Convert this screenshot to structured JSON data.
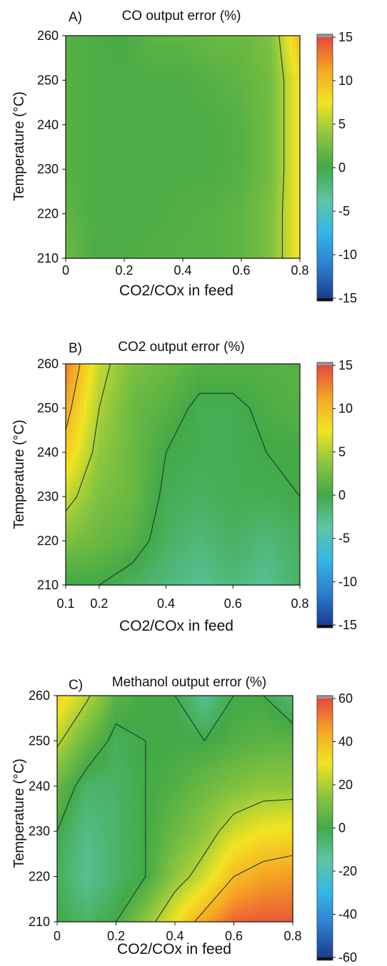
{
  "colors": {
    "stops": [
      "#1a3d8f",
      "#2b7fd0",
      "#33b7e6",
      "#5cc6a8",
      "#43a947",
      "#8cc63e",
      "#f2e422",
      "#f5a623",
      "#e8473c"
    ],
    "contour_line": "#1c3b36",
    "frame": "#111111",
    "cap_top": "#9a9a9a",
    "cap_bottom": "#111111"
  },
  "chart_data": [
    {
      "type": "heatmap",
      "panel_label": "A)",
      "title": "CO output error (%)",
      "xlabel": "CO2/COx in feed",
      "ylabel": "Temperature (°C)",
      "xlim": [
        0,
        0.8
      ],
      "ylim": [
        210,
        260
      ],
      "x_ticks": [
        "0",
        "0.2",
        "0.4",
        "0.6",
        "0.8"
      ],
      "x_tick_values": [
        0,
        0.2,
        0.4,
        0.6,
        0.8
      ],
      "y_ticks": [
        "210",
        "220",
        "230",
        "240",
        "250",
        "260"
      ],
      "y_tick_values": [
        210,
        220,
        230,
        240,
        250,
        260
      ],
      "colorbar": {
        "min": -15,
        "max": 15,
        "ticks": [
          "15",
          "10",
          "5",
          "0",
          "-5",
          "-10",
          "-15"
        ],
        "tick_values": [
          15,
          10,
          5,
          0,
          -5,
          -10,
          -15
        ]
      },
      "x": [
        0,
        0.1,
        0.2,
        0.3,
        0.4,
        0.5,
        0.6,
        0.7,
        0.8
      ],
      "y": [
        210,
        220,
        230,
        240,
        250,
        260
      ],
      "z": [
        [
          2,
          0.5,
          0.5,
          0.8,
          1,
          1,
          1.5,
          3,
          8
        ],
        [
          1.5,
          0.5,
          0.5,
          0.5,
          0.8,
          1,
          1.5,
          3,
          8
        ],
        [
          1,
          0.5,
          0.5,
          0.5,
          0.5,
          0.5,
          1,
          2.5,
          8
        ],
        [
          1,
          0.5,
          0.5,
          0.5,
          0.5,
          0.5,
          1,
          2.5,
          8
        ],
        [
          1,
          0.5,
          0.5,
          0.5,
          0.5,
          1,
          1.5,
          2.5,
          8
        ],
        [
          1,
          0.5,
          0.3,
          1.5,
          1.5,
          2,
          2,
          3,
          10
        ]
      ]
    },
    {
      "type": "heatmap",
      "panel_label": "B)",
      "title": "CO2 output error (%)",
      "xlabel": "CO2/COx in feed",
      "ylabel": "Temperature (°C)",
      "xlim": [
        0.1,
        0.8
      ],
      "ylim": [
        210,
        260
      ],
      "x_ticks": [
        "0.1",
        "0.2",
        "0.4",
        "0.6",
        "0.8"
      ],
      "x_tick_values": [
        0.1,
        0.2,
        0.4,
        0.6,
        0.8
      ],
      "y_ticks": [
        "210",
        "220",
        "230",
        "240",
        "250",
        "260"
      ],
      "y_tick_values": [
        210,
        220,
        230,
        240,
        250,
        260
      ],
      "colorbar": {
        "min": -15,
        "max": 15,
        "ticks": [
          "15",
          "10",
          "5",
          "0",
          "-5",
          "-10",
          "-15"
        ],
        "tick_values": [
          15,
          10,
          5,
          0,
          -5,
          -10,
          -15
        ]
      },
      "x": [
        0.1,
        0.2,
        0.3,
        0.4,
        0.5,
        0.6,
        0.7,
        0.8
      ],
      "y": [
        210,
        220,
        230,
        240,
        250,
        260
      ],
      "z": [
        [
          0,
          0,
          -1,
          -2,
          -3,
          -2,
          -3,
          -1
        ],
        [
          3,
          2,
          1,
          -1,
          -2,
          -1,
          -2,
          -1
        ],
        [
          6,
          3,
          2,
          -0.5,
          -1,
          -0.5,
          -0.5,
          0
        ],
        [
          9,
          4,
          2,
          0,
          -0.5,
          -0.5,
          0,
          0
        ],
        [
          11,
          5,
          2,
          1,
          -0.5,
          -0.5,
          0.5,
          1
        ],
        [
          13,
          6,
          3,
          2,
          1,
          1,
          1,
          1
        ]
      ]
    },
    {
      "type": "heatmap",
      "panel_label": "C)",
      "title": "Methanol output error (%)",
      "xlabel": "CO2/COx in feed",
      "ylabel": "Temperature (°C)",
      "xlim": [
        0,
        0.8
      ],
      "ylim": [
        210,
        260
      ],
      "x_ticks": [
        "0",
        "0.2",
        "0.4",
        "0.6",
        "0.8"
      ],
      "x_tick_values": [
        0,
        0.2,
        0.4,
        0.6,
        0.8
      ],
      "y_ticks": [
        "210",
        "220",
        "230",
        "240",
        "250",
        "260"
      ],
      "y_tick_values": [
        210,
        220,
        230,
        240,
        250,
        260
      ],
      "colorbar": {
        "min": -60,
        "max": 60,
        "ticks": [
          "60",
          "40",
          "20",
          "0",
          "-20",
          "-40",
          "-60"
        ],
        "tick_values": [
          60,
          40,
          20,
          0,
          -20,
          -40,
          -60
        ]
      },
      "x": [
        0,
        0.1,
        0.2,
        0.3,
        0.4,
        0.5,
        0.6,
        0.7,
        0.8
      ],
      "y": [
        210,
        220,
        230,
        240,
        250,
        260
      ],
      "z": [
        [
          0,
          -5,
          0,
          15,
          30,
          45,
          55,
          57,
          57
        ],
        [
          -3,
          -12,
          -5,
          0,
          15,
          25,
          40,
          45,
          47
        ],
        [
          0,
          -10,
          -5,
          0,
          8,
          15,
          25,
          30,
          32
        ],
        [
          8,
          -5,
          -5,
          0,
          3,
          8,
          12,
          15,
          15
        ],
        [
          22,
          8,
          -3,
          0,
          0,
          0,
          3,
          5,
          5
        ],
        [
          35,
          22,
          5,
          0,
          0,
          -12,
          0,
          0,
          -8
        ]
      ]
    }
  ]
}
